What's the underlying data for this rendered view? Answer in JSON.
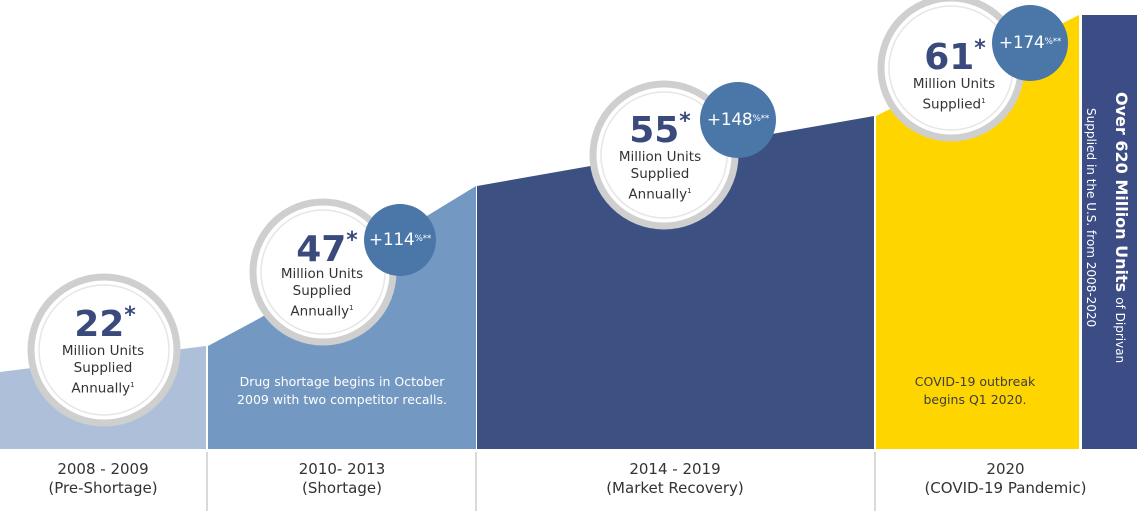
{
  "colors": {
    "pre_shortage": "#aebfd9",
    "shortage": "#7399c2",
    "recovery": "#3c5082",
    "covid": "#ffd500",
    "total_bar": "#3c4c85",
    "badge": "#4a76a8",
    "number": "#3b4a7c",
    "ring": "#cfcfcf",
    "divider": "#cccccc"
  },
  "chart_data": {
    "type": "area",
    "periods": [
      {
        "label": "2008 - 2009",
        "sublabel": "(Pre-Shortage)",
        "units": "22",
        "units_mark": "*",
        "unit_label": [
          "Million Units",
          "Supplied",
          "Annually"
        ],
        "footnote": "1",
        "growth": "",
        "note": ""
      },
      {
        "label": "2010- 2013",
        "sublabel": "(Shortage)",
        "units": "47",
        "units_mark": "*",
        "unit_label": [
          "Million Units",
          "Supplied",
          "Annually"
        ],
        "footnote": "1",
        "growth": "+114",
        "growth_unit": "%",
        "growth_mark": "**",
        "note": "Drug shortage begins in October 2009 with two competitor recalls."
      },
      {
        "label": "2014 - 2019",
        "sublabel": "(Market Recovery)",
        "units": "55",
        "units_mark": "*",
        "unit_label": [
          "Million Units",
          "Supplied",
          "Annually"
        ],
        "footnote": "1",
        "growth": "+148",
        "growth_unit": "%",
        "growth_mark": "**",
        "note": ""
      },
      {
        "label": "2020",
        "sublabel": "(COVID-19 Pandemic)",
        "units": "61",
        "units_mark": "*",
        "unit_label": [
          "Million Units",
          "Supplied"
        ],
        "footnote": "1",
        "growth": "+174",
        "growth_unit": "%",
        "growth_mark": "**",
        "note": "COVID-19 outbreak begins Q1 2020."
      }
    ],
    "total": {
      "headline": "Over 620 Million Units",
      "suffix": "of Diprivan",
      "subline": "Supplied in the U.S. from 2008-2020"
    }
  }
}
